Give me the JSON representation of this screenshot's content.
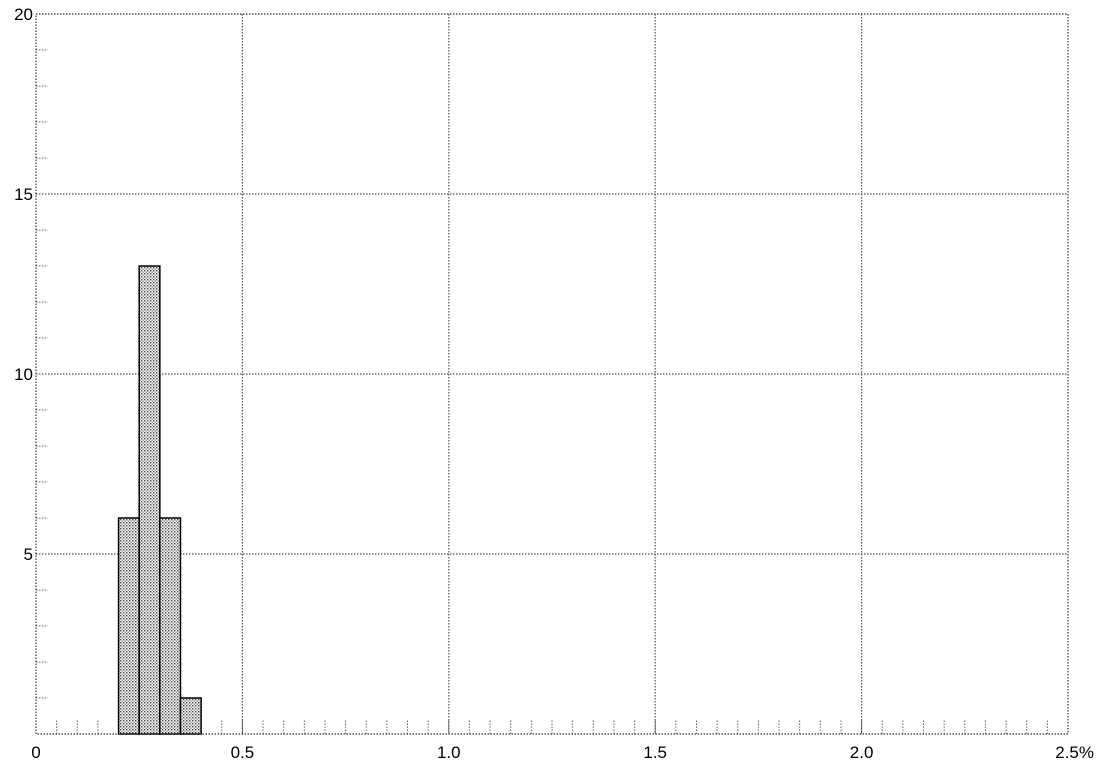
{
  "chart_data": {
    "type": "bar",
    "title": "",
    "xlabel": "",
    "ylabel": "",
    "xlim": [
      0,
      2.5
    ],
    "ylim": [
      0,
      20
    ],
    "x_ticks": [
      0,
      0.5,
      1.0,
      1.5,
      2.0,
      2.5
    ],
    "x_tick_labels": [
      "0",
      "0.5",
      "1.0",
      "1.5",
      "2.0",
      "2.5%"
    ],
    "y_ticks": [
      5,
      10,
      15,
      20
    ],
    "y_tick_labels": [
      "5",
      "10",
      "15",
      "20"
    ],
    "grid": true,
    "bin_width": 0.05,
    "bins": [
      {
        "x0": 0.2,
        "x1": 0.25,
        "value": 6
      },
      {
        "x0": 0.25,
        "x1": 0.3,
        "value": 13
      },
      {
        "x0": 0.3,
        "x1": 0.35,
        "value": 6
      },
      {
        "x0": 0.35,
        "x1": 0.4,
        "value": 1
      }
    ],
    "colors": {
      "bar_fill": "#c8c8c8",
      "bar_stroke": "#000000",
      "grid": "#555555"
    }
  }
}
